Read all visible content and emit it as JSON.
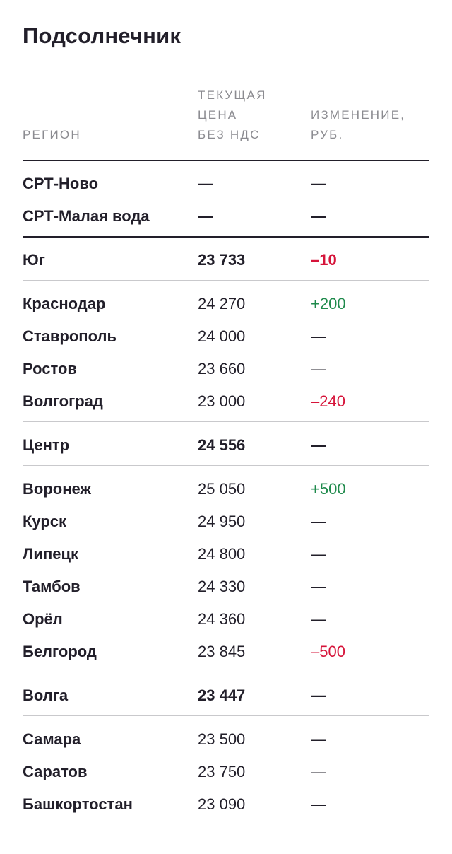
{
  "title": "Подсолнечник",
  "columns": {
    "region": "РЕГИОН",
    "price_line1": "ТЕКУЩАЯ",
    "price_line2": "ЦЕНА",
    "price_line3": "БЕЗ НДС",
    "change_line1": "ИЗМЕНЕНИЕ,",
    "change_line2": "РУБ."
  },
  "special_rows": [
    {
      "region": "СРТ-Ново",
      "price": "—",
      "change": "—",
      "trend": "neutral"
    },
    {
      "region": "СРТ-Малая вода",
      "price": "—",
      "change": "—",
      "trend": "neutral"
    }
  ],
  "groups": [
    {
      "total": {
        "region": "Юг",
        "price": "23 733",
        "change": "–10",
        "trend": "negative"
      },
      "rows": [
        {
          "region": "Краснодар",
          "price": "24 270",
          "change": "+200",
          "trend": "positive"
        },
        {
          "region": "Ставрополь",
          "price": "24 000",
          "change": "—",
          "trend": "neutral"
        },
        {
          "region": "Ростов",
          "price": "23 660",
          "change": "—",
          "trend": "neutral"
        },
        {
          "region": "Волгоград",
          "price": "23 000",
          "change": "–240",
          "trend": "negative"
        }
      ]
    },
    {
      "total": {
        "region": "Центр",
        "price": "24 556",
        "change": "—",
        "trend": "neutral"
      },
      "rows": [
        {
          "region": "Воронеж",
          "price": "25 050",
          "change": "+500",
          "trend": "positive"
        },
        {
          "region": "Курск",
          "price": "24 950",
          "change": "—",
          "trend": "neutral"
        },
        {
          "region": "Липецк",
          "price": "24 800",
          "change": "—",
          "trend": "neutral"
        },
        {
          "region": "Тамбов",
          "price": "24 330",
          "change": "—",
          "trend": "neutral"
        },
        {
          "region": "Орёл",
          "price": "24 360",
          "change": "—",
          "trend": "neutral"
        },
        {
          "region": "Белгород",
          "price": "23 845",
          "change": "–500",
          "trend": "negative"
        }
      ]
    },
    {
      "total": {
        "region": "Волга",
        "price": "23 447",
        "change": "—",
        "trend": "neutral"
      },
      "rows": [
        {
          "region": "Самара",
          "price": "23 500",
          "change": "—",
          "trend": "neutral"
        },
        {
          "region": "Саратов",
          "price": "23 750",
          "change": "—",
          "trend": "neutral"
        },
        {
          "region": "Башкортостан",
          "price": "23 090",
          "change": "—",
          "trend": "neutral"
        }
      ]
    }
  ],
  "colors": {
    "text": "#221f2a",
    "header": "#8b8b90",
    "positive": "#1f8a4c",
    "negative": "#d6143a",
    "rule_light": "#c9c9cc"
  }
}
